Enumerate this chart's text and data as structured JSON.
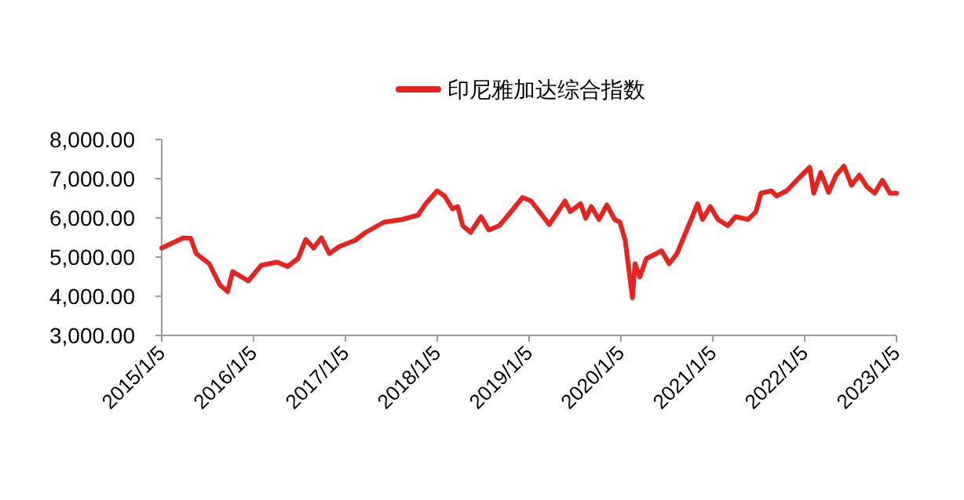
{
  "chart_data": {
    "type": "line",
    "x": [
      "2015-01-05",
      "2015-04-01",
      "2015-04-30",
      "2015-05-22",
      "2015-07-13",
      "2015-08-24",
      "2015-09-24",
      "2015-10-14",
      "2015-12-15",
      "2016-02-05",
      "2016-04-08",
      "2016-05-19",
      "2016-06-30",
      "2016-07-31",
      "2016-08-31",
      "2016-10-01",
      "2016-11-01",
      "2016-12-12",
      "2017-02-13",
      "2017-03-26",
      "2017-06-07",
      "2017-08-19",
      "2017-10-20",
      "2017-11-20",
      "2018-01-04",
      "2018-02-03",
      "2018-03-06",
      "2018-03-27",
      "2018-04-16",
      "2018-05-17",
      "2018-06-28",
      "2018-07-29",
      "2018-09-08",
      "2018-10-09",
      "2018-12-10",
      "2019-01-13",
      "2019-03-26",
      "2019-05-28",
      "2019-06-17",
      "2019-07-29",
      "2019-08-18",
      "2019-09-09",
      "2019-10-10",
      "2019-11-10",
      "2019-12-11",
      "2020-01-01",
      "2020-01-22",
      "2020-02-20",
      "2020-03-01",
      "2020-03-20",
      "2020-04-15",
      "2020-06-15",
      "2020-07-15",
      "2020-08-15",
      "2020-10-15",
      "2020-11-05",
      "2020-11-25",
      "2020-12-25",
      "2021-01-25",
      "2021-03-05",
      "2021-04-05",
      "2021-05-25",
      "2021-06-25",
      "2021-07-15",
      "2021-08-25",
      "2021-09-15",
      "2021-10-25",
      "2021-12-15",
      "2022-01-25",
      "2022-02-10",
      "2022-03-10",
      "2022-04-10",
      "2022-05-10",
      "2022-06-10",
      "2022-07-10",
      "2022-08-10",
      "2022-09-10",
      "2022-10-10",
      "2022-11-10",
      "2022-12-10",
      "2023-01-05"
    ],
    "series": [
      {
        "name": "印尼雅加达综合指数",
        "color": "#e8231d",
        "values": [
          5230,
          5490,
          5480,
          5090,
          4830,
          4290,
          4120,
          4630,
          4390,
          4790,
          4870,
          4760,
          4960,
          5450,
          5230,
          5490,
          5090,
          5270,
          5430,
          5630,
          5890,
          5960,
          6070,
          6360,
          6690,
          6560,
          6230,
          6290,
          5800,
          5630,
          6030,
          5690,
          5800,
          6030,
          6520,
          6430,
          5830,
          6430,
          6160,
          6360,
          5990,
          6290,
          5960,
          6330,
          5960,
          5890,
          5430,
          3960,
          4830,
          4490,
          4960,
          5160,
          4830,
          5090,
          6030,
          6360,
          5960,
          6290,
          5960,
          5800,
          6030,
          5960,
          6160,
          6630,
          6690,
          6560,
          6690,
          7030,
          7290,
          6630,
          7160,
          6650,
          7090,
          7320,
          6830,
          7090,
          6790,
          6630,
          6960,
          6630,
          6630
        ]
      }
    ],
    "xlim": [
      "2015-01-05",
      "2023-01-05"
    ],
    "xticks": [
      {
        "value": "2015-01-05",
        "label": "2015/1/5"
      },
      {
        "value": "2016-01-05",
        "label": "2016/1/5"
      },
      {
        "value": "2017-01-05",
        "label": "2017/1/5"
      },
      {
        "value": "2018-01-05",
        "label": "2018/1/5"
      },
      {
        "value": "2019-01-05",
        "label": "2019/1/5"
      },
      {
        "value": "2020-01-05",
        "label": "2020/1/5"
      },
      {
        "value": "2021-01-05",
        "label": "2021/1/5"
      },
      {
        "value": "2022-01-05",
        "label": "2022/1/5"
      },
      {
        "value": "2023-01-05",
        "label": "2023/1/5"
      }
    ],
    "ylim": [
      3000,
      8000
    ],
    "yticks": [
      {
        "value": 3000,
        "label": "3,000.00"
      },
      {
        "value": 4000,
        "label": "4,000.00"
      },
      {
        "value": 5000,
        "label": "5,000.00"
      },
      {
        "value": 6000,
        "label": "6,000.00"
      },
      {
        "value": 7000,
        "label": "7,000.00"
      },
      {
        "value": 8000,
        "label": "8,000.00"
      }
    ],
    "grid": false,
    "legend": "top"
  }
}
